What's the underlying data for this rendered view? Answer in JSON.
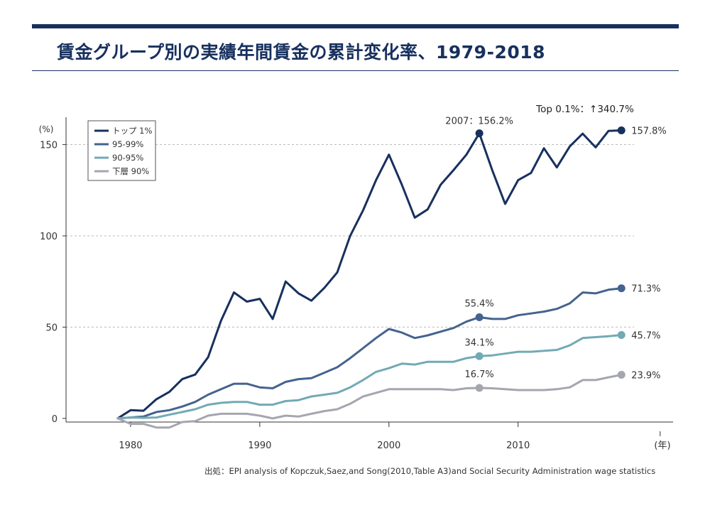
{
  "title": "賃金グループ別の実績年間賃金の累計変化率、1979-2018",
  "source": "出処：EPI analysis of Kopczuk,Saez,and Song(2010,Table A3)and Social Security Administration wage statistics",
  "colors": {
    "top1": "#17305e",
    "p95_99": "#44638f",
    "p90_95": "#72aab4",
    "bottom90": "#a4a6b0",
    "grid": "#bbbbbb",
    "axis": "#333333",
    "text": "#333333"
  },
  "chart_data": {
    "type": "line",
    "title": "賃金グループ別の実績年間賃金の累計変化率、1979-2018",
    "ylabel": "(%)",
    "xlabel": "(年)",
    "xlim": [
      1975,
      2022
    ],
    "ylim": [
      -2,
      165
    ],
    "xticks": [
      1980,
      1990,
      2000,
      2010
    ],
    "yticks": [
      0,
      50,
      100,
      150
    ],
    "legend_position": "top-left",
    "x": [
      1979,
      1980,
      1981,
      1982,
      1983,
      1984,
      1985,
      1986,
      1987,
      1988,
      1989,
      1990,
      1991,
      1992,
      1993,
      1994,
      1995,
      1996,
      1997,
      1998,
      1999,
      2000,
      2001,
      2002,
      2003,
      2004,
      2005,
      2006,
      2007,
      2008,
      2009,
      2010,
      2011,
      2012,
      2013,
      2014,
      2015,
      2016,
      2017,
      2018
    ],
    "series": [
      {
        "key": "top1",
        "name": "トップ 1%",
        "values": [
          0,
          4.5,
          4.2,
          10.5,
          14.5,
          21.5,
          24,
          33.5,
          53.5,
          69,
          64,
          65.5,
          54.5,
          75,
          68.5,
          64.5,
          71.5,
          80,
          100,
          114,
          130.5,
          144.5,
          128,
          110,
          114.5,
          128,
          136,
          144.5,
          156.2,
          136,
          117.5,
          130.5,
          134.5,
          148,
          137.5,
          149,
          156,
          148.5,
          157.5,
          157.8
        ],
        "end_label": "157.8%",
        "highlight": {
          "x": 2007,
          "label": "2007：156.2%"
        }
      },
      {
        "key": "p95_99",
        "name": "95-99%",
        "values": [
          0,
          0.5,
          1,
          3.5,
          4.5,
          6.5,
          9,
          13,
          16,
          19,
          19,
          17,
          16.5,
          20,
          21.5,
          22,
          25,
          28,
          33,
          38.5,
          44,
          49,
          47,
          44,
          45.5,
          47.5,
          49.5,
          53,
          55.4,
          54.5,
          54.5,
          56.5,
          57.5,
          58.5,
          60,
          63,
          69,
          68.5,
          70.5,
          71.3
        ],
        "end_label": "71.3%",
        "highlight": {
          "x": 2007,
          "label": "55.4%"
        }
      },
      {
        "key": "p90_95",
        "name": "90-95%",
        "values": [
          0,
          0.5,
          0.3,
          0.5,
          2,
          3.5,
          5,
          7.5,
          8.5,
          9,
          9,
          7.5,
          7.5,
          9.5,
          10,
          12,
          13,
          14,
          17,
          21,
          25.5,
          27.5,
          30,
          29.5,
          31,
          31,
          31,
          33,
          34.1,
          34.5,
          35.5,
          36.5,
          36.5,
          37,
          37.5,
          40,
          44,
          44.5,
          45,
          45.7
        ],
        "end_label": "45.7%",
        "highlight": {
          "x": 2007,
          "label": "34.1%"
        }
      },
      {
        "key": "bottom90",
        "name": "下層 90%",
        "values": [
          0,
          -3,
          -3,
          -5,
          -5,
          -2,
          -1.5,
          1.5,
          2.5,
          2.5,
          2.5,
          1.5,
          0,
          1.5,
          1,
          2.5,
          4,
          5,
          8,
          12,
          14,
          16,
          16,
          16,
          16,
          16,
          15.5,
          16.5,
          16.7,
          16.5,
          16,
          15.5,
          15.5,
          15.5,
          16,
          17,
          21,
          21,
          22.5,
          23.9
        ],
        "end_label": "23.9%",
        "highlight": {
          "x": 2007,
          "label": "16.7%"
        }
      }
    ],
    "annotation": "Top 0.1%：↑340.7%"
  }
}
